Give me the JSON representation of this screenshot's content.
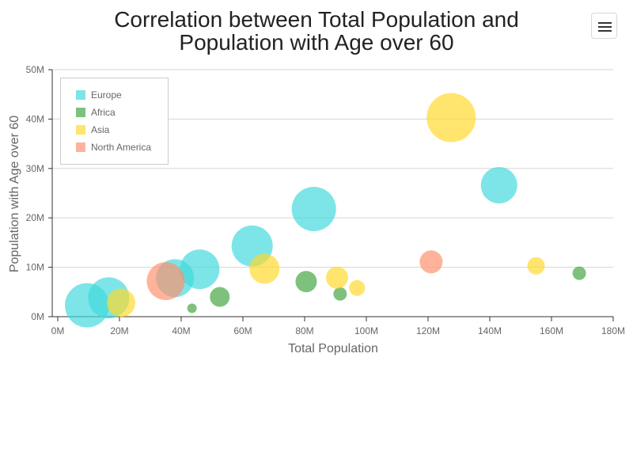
{
  "header": {
    "title": "Correlation between Total Population and Population with Age over 60"
  },
  "toolbar": {
    "menu_icon": "hamburger-menu-icon"
  },
  "chart_data": {
    "type": "bubble",
    "title": "Correlation between Total Population and Population with Age over 60",
    "xlabel": "Total Population",
    "ylabel": "Population with Age over 60",
    "xlim": [
      0,
      180000000
    ],
    "ylim": [
      0,
      50000000
    ],
    "x_ticks": [
      "0M",
      "20M",
      "40M",
      "60M",
      "80M",
      "100M",
      "120M",
      "140M",
      "160M",
      "180M"
    ],
    "y_ticks": [
      "0M",
      "10M",
      "20M",
      "30M",
      "40M",
      "50M"
    ],
    "grid": true,
    "legend_position": "top-left",
    "series": [
      {
        "name": "Europe",
        "color": "#40D9DC",
        "points": [
          {
            "x": 9500000,
            "y": 2300000,
            "size": 28
          },
          {
            "x": 16500000,
            "y": 3800000,
            "size": 26
          },
          {
            "x": 38000000,
            "y": 7800000,
            "size": 24
          },
          {
            "x": 46000000,
            "y": 9600000,
            "size": 25
          },
          {
            "x": 63000000,
            "y": 14300000,
            "size": 26
          },
          {
            "x": 83000000,
            "y": 21800000,
            "size": 28
          },
          {
            "x": 143000000,
            "y": 26600000,
            "size": 23
          }
        ]
      },
      {
        "name": "Africa",
        "color": "#3FA33F",
        "points": [
          {
            "x": 43500000,
            "y": 1700000,
            "size": 6
          },
          {
            "x": 52500000,
            "y": 4000000,
            "size": 12.5
          },
          {
            "x": 80500000,
            "y": 7100000,
            "size": 13.5
          },
          {
            "x": 91500000,
            "y": 4600000,
            "size": 8.5
          },
          {
            "x": 169000000,
            "y": 8800000,
            "size": 8.5
          }
        ]
      },
      {
        "name": "Asia",
        "color": "#FFD928",
        "points": [
          {
            "x": 20500000,
            "y": 2800000,
            "size": 18
          },
          {
            "x": 67000000,
            "y": 9700000,
            "size": 19
          },
          {
            "x": 90500000,
            "y": 7900000,
            "size": 14
          },
          {
            "x": 97000000,
            "y": 5800000,
            "size": 10
          },
          {
            "x": 127500000,
            "y": 40300000,
            "size": 31
          },
          {
            "x": 155000000,
            "y": 10300000,
            "size": 11
          }
        ]
      },
      {
        "name": "North America",
        "color": "#FF8F6B",
        "points": [
          {
            "x": 35000000,
            "y": 7200000,
            "size": 24
          },
          {
            "x": 121000000,
            "y": 11100000,
            "size": 14.5
          }
        ]
      }
    ]
  }
}
